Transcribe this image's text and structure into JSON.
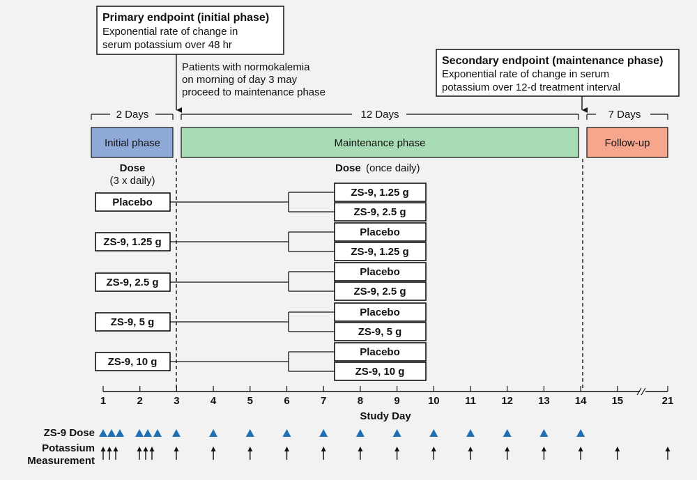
{
  "callouts": {
    "primary": {
      "title": "Primary endpoint (initial phase)",
      "line1": "Exponential rate of change in",
      "line2": "serum potassium over 48 hr"
    },
    "secondary": {
      "title": "Secondary endpoint (maintenance phase)",
      "line1": "Exponential rate of change in serum",
      "line2": "potassium over 12-d treatment interval"
    },
    "normokalemia": {
      "line1": "Patients with normokalemia",
      "line2": "on morning of day 3 may",
      "line3": "proceed to maintenance phase"
    }
  },
  "durations": {
    "initial": "2 Days",
    "maintenance": "12 Days",
    "followup": "7 Days"
  },
  "phases": {
    "initial": {
      "label": "Initial phase",
      "color": "#8fa9d9"
    },
    "maintenance": {
      "label": "Maintenance phase",
      "color": "#a8dcb4"
    },
    "followup": {
      "label": "Follow-up",
      "color": "#f6a68d"
    }
  },
  "dose_headers": {
    "initial_dose": "Dose",
    "initial_freq": "(3 x daily)",
    "maintenance_dose": "Dose",
    "maintenance_freq": "(once daily)",
    "initial_color": "#1f6fb5",
    "maintenance_color": "#2aa548"
  },
  "initial_arms": [
    "Placebo",
    "ZS-9, 1.25 g",
    "ZS-9, 2.5 g",
    "ZS-9, 5 g",
    "ZS-9, 10 g"
  ],
  "maintenance_arms": [
    [
      "ZS-9, 1.25 g",
      "ZS-9, 2.5 g"
    ],
    [
      "Placebo",
      "ZS-9, 1.25 g"
    ],
    [
      "Placebo",
      "ZS-9, 2.5 g"
    ],
    [
      "Placebo",
      "ZS-9, 5 g"
    ],
    [
      "Placebo",
      "ZS-9, 10 g"
    ]
  ],
  "axis": {
    "title": "Study Day",
    "ticks": [
      "1",
      "2",
      "3",
      "4",
      "5",
      "6",
      "7",
      "8",
      "9",
      "10",
      "11",
      "12",
      "13",
      "14",
      "15",
      "21"
    ]
  },
  "schedule": {
    "dose_label": "ZS-9 Dose",
    "potassium_label_1": "Potassium",
    "potassium_label_2": "Measurement",
    "dose_color": "#1f6fb5"
  }
}
